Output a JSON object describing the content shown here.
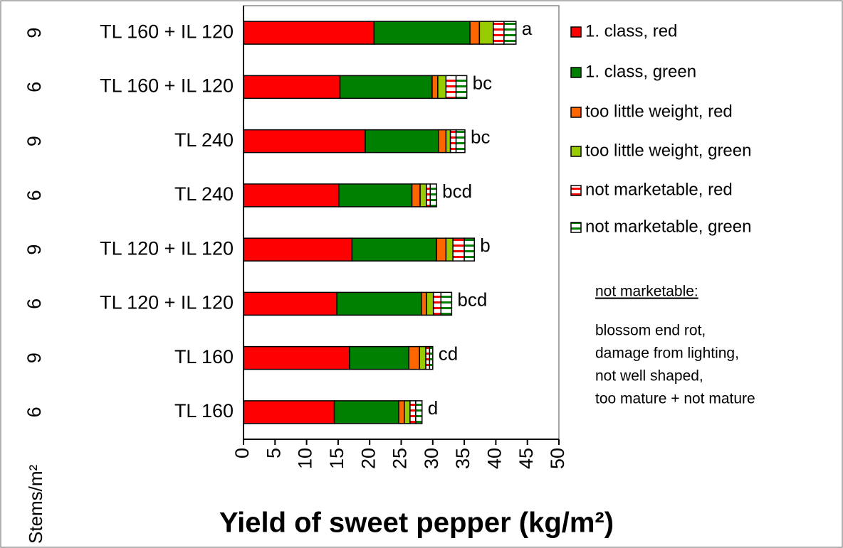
{
  "chart_data": {
    "type": "stacked-bar-horizontal",
    "xlabel": "Yield of sweet pepper (kg/m²)",
    "stems_label": "Stems/m²",
    "categories": [
      "TL 160 + IL 120",
      "TL 160 + IL 120",
      "TL 240",
      "TL 240",
      "TL 120 + IL 120",
      "TL 120 + IL 120",
      "TL 160",
      "TL 160"
    ],
    "stems": [
      "9",
      "6",
      "9",
      "6",
      "9",
      "6",
      "9",
      "6"
    ],
    "significance": [
      "a",
      "bc",
      "bc",
      "bcd",
      "b",
      "bcd",
      "cd",
      "d"
    ],
    "series": [
      {
        "name": "1. class, red",
        "color": "#ff0000",
        "values": [
          20.7,
          15.3,
          19.3,
          15.1,
          17.2,
          14.8,
          16.8,
          14.4
        ]
      },
      {
        "name": "1. class, green",
        "color": "#008000",
        "values": [
          15.2,
          14.6,
          11.6,
          11.6,
          13.4,
          13.4,
          9.4,
          10.2
        ]
      },
      {
        "name": "too little weight, red",
        "color": "#ff6600",
        "values": [
          1.5,
          0.9,
          1.2,
          1.3,
          1.5,
          0.8,
          1.7,
          0.9
        ]
      },
      {
        "name": "too little weight, green",
        "color": "#99cc00",
        "values": [
          2.2,
          1.3,
          0.7,
          1.0,
          1.1,
          1.1,
          1.0,
          0.9
        ]
      },
      {
        "name": "not marketable, red",
        "color": "#ff0000",
        "hatch": "horizontal",
        "values": [
          1.7,
          1.6,
          0.9,
          0.6,
          1.8,
          1.2,
          0.6,
          0.9
        ]
      },
      {
        "name": "not marketable, green",
        "color": "#008000",
        "hatch": "horizontal",
        "values": [
          1.9,
          1.7,
          1.4,
          1.0,
          1.6,
          1.7,
          0.5,
          1.0
        ]
      }
    ],
    "xlim": [
      0,
      50
    ],
    "xticks": [
      0,
      5,
      10,
      15,
      20,
      25,
      30,
      35,
      40,
      45,
      50
    ],
    "legend": "right",
    "note_title": "not marketable:",
    "notes": [
      "blossom end rot,",
      "damage from lighting,",
      "not well shaped,",
      "too mature + not mature"
    ]
  }
}
